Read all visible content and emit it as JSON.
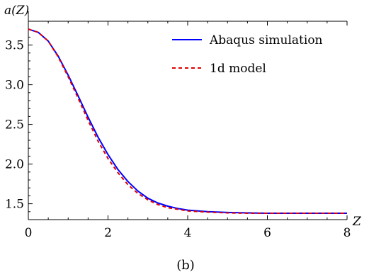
{
  "chart_data": {
    "type": "line",
    "title": "",
    "xlabel": "Z",
    "ylabel": "a(Z)",
    "xlim": [
      0,
      8
    ],
    "ylim": [
      1.3,
      3.8
    ],
    "x_ticks": [
      0,
      2,
      4,
      6,
      8
    ],
    "y_ticks": [
      1.5,
      2.0,
      2.5,
      3.0,
      3.5
    ],
    "x_tick_labels": [
      "0",
      "2",
      "4",
      "6",
      "8"
    ],
    "y_tick_labels": [
      "1.5",
      "2.0",
      "2.5",
      "3.0",
      "3.5"
    ],
    "grid": false,
    "legend_position": "top-right",
    "caption": "(b)",
    "series": [
      {
        "name": "Abaqus simulation",
        "color": "#0000ff",
        "style": "solid",
        "x": [
          0,
          0.25,
          0.5,
          0.75,
          1.0,
          1.25,
          1.5,
          1.75,
          2.0,
          2.25,
          2.5,
          2.75,
          3.0,
          3.25,
          3.5,
          3.75,
          4.0,
          4.5,
          5.0,
          5.5,
          6.0,
          7.0,
          8.0
        ],
        "y": [
          3.7,
          3.66,
          3.55,
          3.36,
          3.12,
          2.86,
          2.59,
          2.34,
          2.12,
          1.93,
          1.78,
          1.66,
          1.57,
          1.51,
          1.47,
          1.44,
          1.42,
          1.4,
          1.39,
          1.385,
          1.38,
          1.38,
          1.38
        ]
      },
      {
        "name": "1d model",
        "color": "#e00000",
        "style": "dashed",
        "x": [
          0,
          0.25,
          0.5,
          0.75,
          1.0,
          1.25,
          1.5,
          1.75,
          2.0,
          2.25,
          2.5,
          2.75,
          3.0,
          3.25,
          3.5,
          3.75,
          4.0,
          4.5,
          5.0,
          5.5,
          6.0,
          7.0,
          8.0
        ],
        "y": [
          3.7,
          3.66,
          3.55,
          3.35,
          3.1,
          2.83,
          2.55,
          2.29,
          2.07,
          1.89,
          1.74,
          1.63,
          1.55,
          1.49,
          1.45,
          1.43,
          1.41,
          1.395,
          1.385,
          1.38,
          1.38,
          1.38,
          1.38
        ]
      }
    ]
  }
}
